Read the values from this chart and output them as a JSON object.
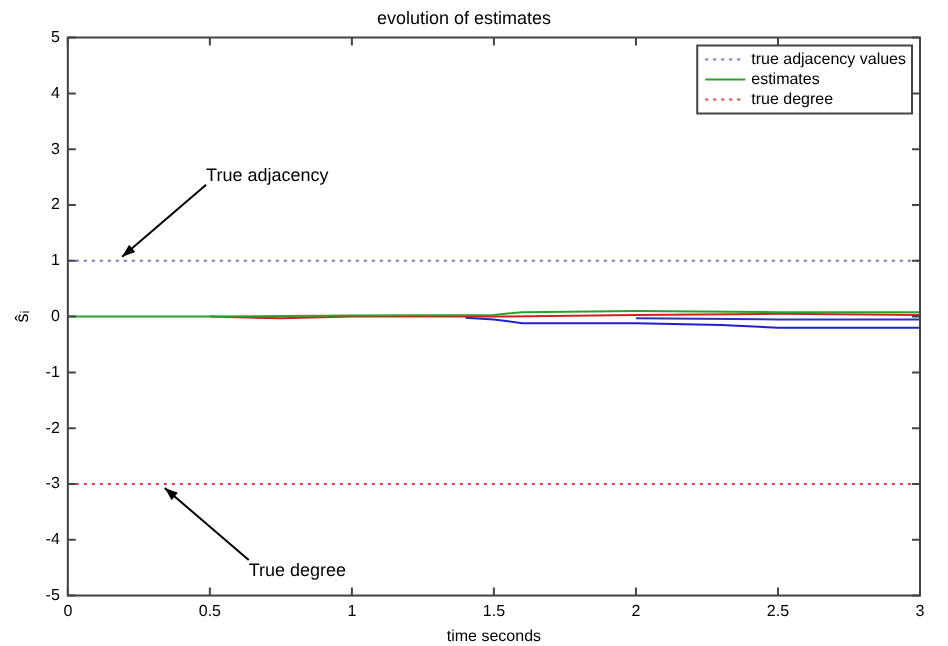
{
  "chart_data": {
    "type": "line",
    "title": "evolution of estimates",
    "xlabel": "time seconds",
    "ylabel": "ŝᵢ",
    "xlim": [
      0,
      3
    ],
    "xticks": [
      0,
      0.5,
      1,
      1.5,
      2,
      2.5,
      3
    ],
    "ylim": [
      -5,
      5
    ],
    "yticks": [
      -5,
      -4,
      -3,
      -2,
      -1,
      0,
      1,
      2,
      3,
      4,
      5
    ],
    "grid": false,
    "legend": "top right",
    "marker": "none",
    "series": [
      {
        "name": "true adjacency values",
        "color": "#7070e0",
        "line_style": "dotted",
        "x": [
          0,
          3
        ],
        "values": [
          1,
          1
        ]
      },
      {
        "name": "estimates",
        "color": "#2ca02c",
        "line_style": "solid",
        "x": [
          0,
          0.5,
          1,
          1.5,
          1.6,
          2,
          2.5,
          3
        ],
        "values": [
          0,
          0,
          0.02,
          0.03,
          0.08,
          0.1,
          0.08,
          0.08
        ]
      },
      {
        "name": "true degree",
        "color": "#e04040",
        "line_style": "dotted",
        "x": [
          0,
          3
        ],
        "values": [
          -3,
          -3
        ]
      },
      {
        "color": "#d02020",
        "line_style": "solid",
        "x": [
          0.5,
          0.75,
          1,
          1.5,
          2,
          2.5,
          3
        ],
        "values": [
          0,
          -0.03,
          0,
          0,
          0.03,
          0.05,
          0.03
        ]
      },
      {
        "color": "#2020d0",
        "line_style": "solid",
        "x": [
          1.4,
          1.5,
          1.6,
          2,
          2.3,
          2.5,
          3
        ],
        "values": [
          -0.02,
          -0.05,
          -0.12,
          -0.12,
          -0.15,
          -0.2,
          -0.2
        ]
      },
      {
        "color": "#3030c0",
        "line_style": "solid",
        "x": [
          2,
          2.5,
          3
        ],
        "values": [
          -0.03,
          -0.05,
          -0.05
        ]
      }
    ],
    "annotations": [
      {
        "text": "True adjacency",
        "x": 0.17,
        "y": 1
      },
      {
        "text": "True degree",
        "x": 0.32,
        "y": -3
      }
    ]
  }
}
